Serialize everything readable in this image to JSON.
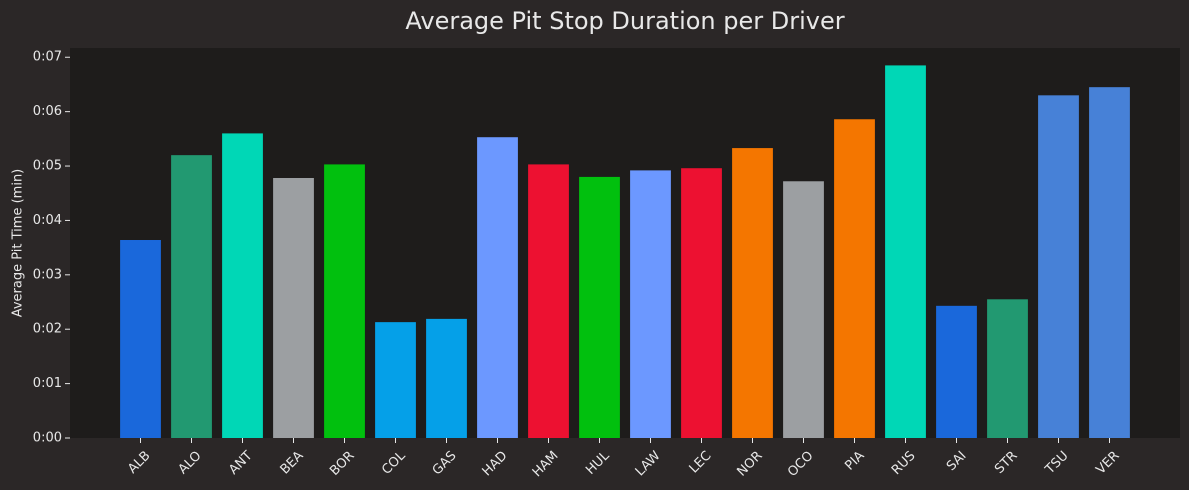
{
  "chart_data": {
    "type": "bar",
    "title": "Average Pit Stop Duration per Driver",
    "y_label": "Average Pit Time (min)",
    "categories": [
      "ALB",
      "ALO",
      "ANT",
      "BEA",
      "BOR",
      "COL",
      "GAS",
      "HAD",
      "HAM",
      "HUL",
      "LAW",
      "LEC",
      "NOR",
      "OCO",
      "PIA",
      "RUS",
      "SAI",
      "STR",
      "TSU",
      "VER"
    ],
    "values": [
      0.0364,
      0.052,
      0.056,
      0.0478,
      0.0503,
      0.0213,
      0.0219,
      0.0553,
      0.0503,
      0.048,
      0.0492,
      0.0496,
      0.0533,
      0.0472,
      0.0586,
      0.0685,
      0.0243,
      0.0255,
      0.063,
      0.0645
    ],
    "colors": [
      "#1a68db",
      "#229971",
      "#00d7b6",
      "#9c9fa2",
      "#01c00e",
      "#05a0e8",
      "#05a0e8",
      "#6c98ff",
      "#ed1131",
      "#01c00e",
      "#6c98ff",
      "#ed1131",
      "#f47600",
      "#9c9fa2",
      "#f47600",
      "#00d7b6",
      "#1a68db",
      "#229971",
      "#4781d7",
      "#4781d7"
    ],
    "ylim": [
      0,
      0.0717
    ],
    "yticks": [
      {
        "value": 0,
        "label": "0:00"
      },
      {
        "value": 0.01,
        "label": "0:01"
      },
      {
        "value": 0.02,
        "label": "0:02"
      },
      {
        "value": 0.03,
        "label": "0:03"
      },
      {
        "value": 0.04,
        "label": "0:04"
      },
      {
        "value": 0.05,
        "label": "0:05"
      },
      {
        "value": 0.06,
        "label": "0:06"
      },
      {
        "value": 0.07,
        "label": "0:07"
      }
    ]
  }
}
